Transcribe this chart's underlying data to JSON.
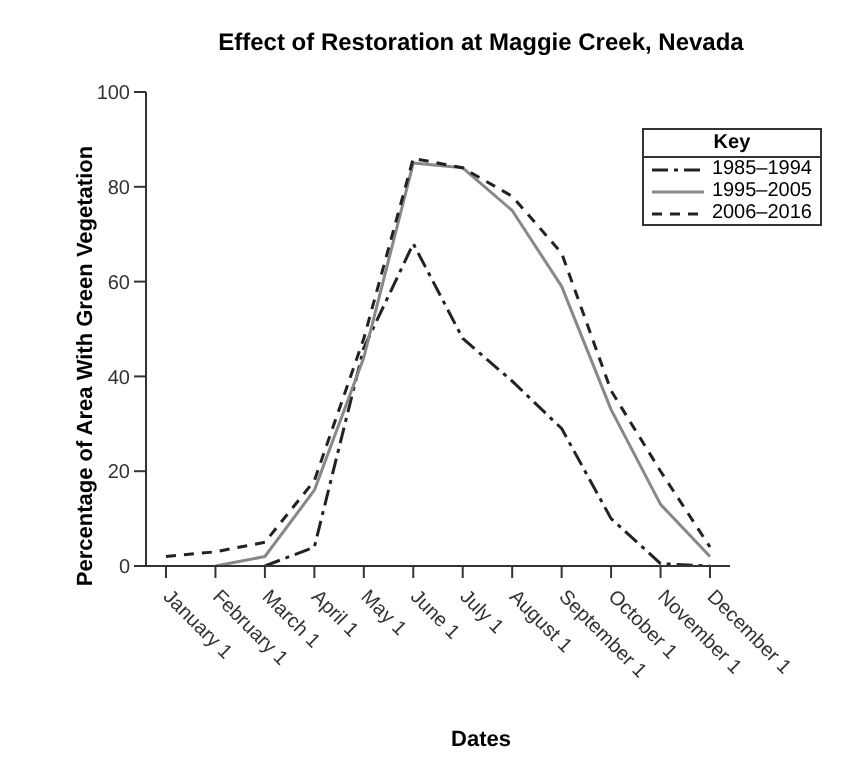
{
  "chart_data": {
    "type": "line",
    "title": "Effect of Restoration at Maggie Creek, Nevada",
    "xlabel": "Dates",
    "ylabel": "Percentage of Area With Green Vegetation",
    "legend_title": "Key",
    "legend": "top right",
    "marker": "none",
    "grid": false,
    "categories": [
      "January 1",
      "February 1",
      "March 1",
      "April 1",
      "May 1",
      "June 1",
      "July 1",
      "August 1",
      "September 1",
      "October 1",
      "November 1",
      "December 1"
    ],
    "ylim": [
      0,
      100
    ],
    "yticks": [
      0,
      20,
      40,
      60,
      80,
      100
    ],
    "series": [
      {
        "name": "1985–1994",
        "color": "#222222",
        "line_style": "dashdot",
        "values": [
          null,
          null,
          0,
          4,
          46,
          68,
          48,
          39,
          29,
          10,
          0.5,
          0
        ]
      },
      {
        "name": "1995–2005",
        "color": "#888888",
        "line_style": "solid",
        "values": [
          null,
          0,
          2,
          16,
          44,
          85,
          84,
          75,
          59,
          33,
          13,
          2
        ]
      },
      {
        "name": "2006–2016",
        "color": "#222222",
        "line_style": "dashed",
        "values": [
          2,
          3,
          5,
          18,
          48,
          86,
          84,
          78,
          66,
          37,
          20,
          4
        ]
      }
    ]
  }
}
